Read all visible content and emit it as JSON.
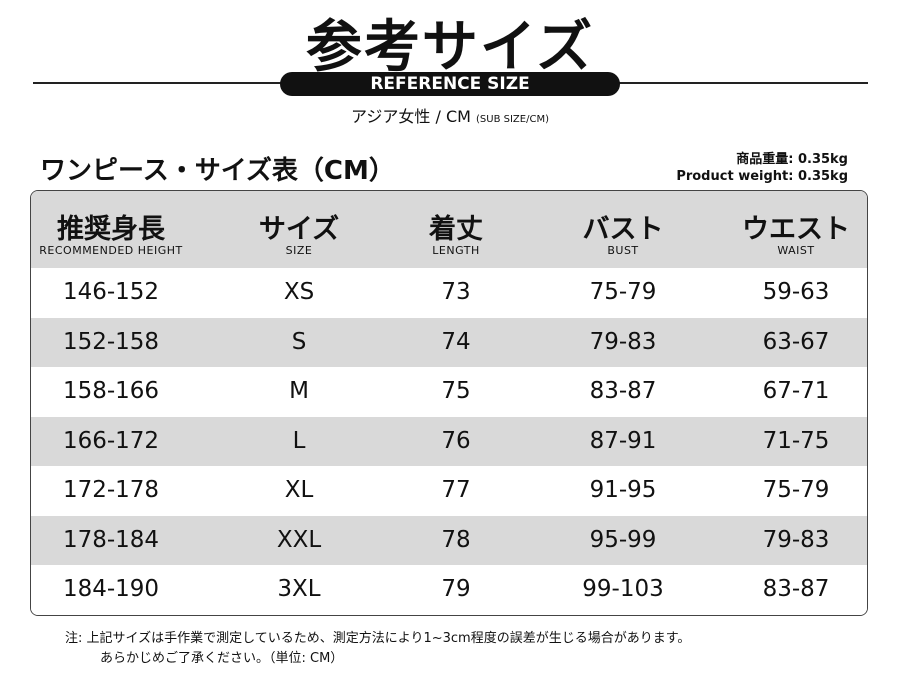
{
  "header": {
    "title": "参考サイズ",
    "badge": "REFERENCE SIZE",
    "subtitle": "アジア女性 / CM",
    "subtitle_small": "(SUB SIZE/CM)"
  },
  "table_title": "ワンピース・サイズ表（CM）",
  "weight": [
    "商品重量: 0.35kg",
    "Product weight: 0.35kg"
  ],
  "table": {
    "columns": [
      {
        "jp": "推奨身長",
        "en": "RECOMMENDED HEIGHT"
      },
      {
        "jp": "サイズ",
        "en": "SIZE"
      },
      {
        "jp": "着丈",
        "en": "LENGTH"
      },
      {
        "jp": "バスト",
        "en": "BUST"
      },
      {
        "jp": "ウエスト",
        "en": "WAIST"
      }
    ],
    "rows": [
      [
        "146-152",
        "XS",
        "73",
        "75-79",
        "59-63"
      ],
      [
        "152-158",
        "S",
        "74",
        "79-83",
        "63-67"
      ],
      [
        "158-166",
        "M",
        "75",
        "83-87",
        "67-71"
      ],
      [
        "166-172",
        "L",
        "76",
        "87-91",
        "71-75"
      ],
      [
        "172-178",
        "XL",
        "77",
        "91-95",
        "75-79"
      ],
      [
        "178-184",
        "XXL",
        "78",
        "95-99",
        "79-83"
      ],
      [
        "184-190",
        "3XL",
        "79",
        "99-103",
        "83-87"
      ]
    ]
  },
  "notes": [
    "注: 上記サイズは手作業で測定しているため、測定方法により1~3cm程度の誤差が生じる場合があります。",
    "あらかじめご了承ください。（単位: CM）"
  ]
}
